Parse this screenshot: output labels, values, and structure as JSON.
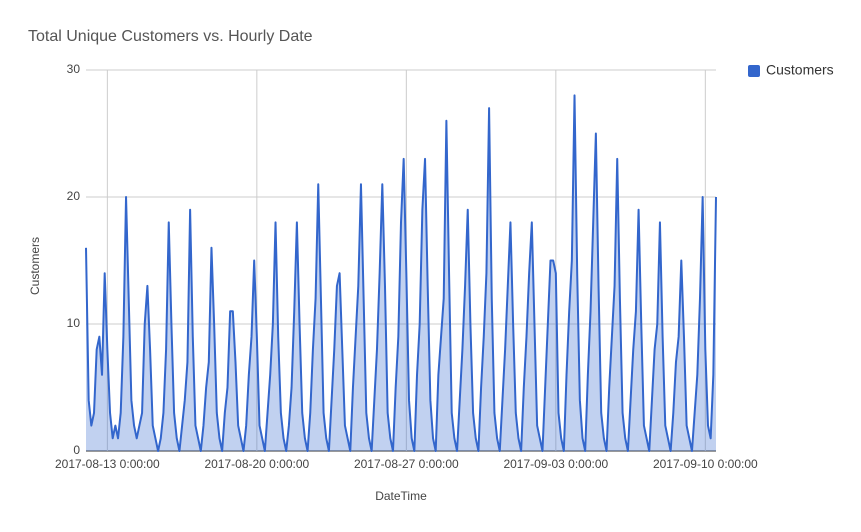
{
  "chart_data": {
    "type": "area",
    "title": "Total Unique Customers vs. Hourly Date",
    "x_label": "DateTime",
    "y_label": "Customers",
    "x": [
      "2017-08-12 0:00:00",
      "2017-08-12 3:00:00",
      "2017-08-12 6:00:00",
      "2017-08-12 9:00:00",
      "2017-08-12 12:00:00",
      "2017-08-12 15:00:00",
      "2017-08-12 18:00:00",
      "2017-08-12 21:00:00",
      "2017-08-13 0:00:00",
      "2017-08-13 3:00:00",
      "2017-08-13 6:00:00",
      "2017-08-13 9:00:00",
      "2017-08-13 12:00:00",
      "2017-08-13 15:00:00",
      "2017-08-13 18:00:00",
      "2017-08-13 21:00:00",
      "2017-08-14 0:00:00",
      "2017-08-14 3:00:00",
      "2017-08-14 6:00:00",
      "2017-08-14 9:00:00",
      "2017-08-14 12:00:00",
      "2017-08-14 15:00:00",
      "2017-08-14 18:00:00",
      "2017-08-14 21:00:00",
      "2017-08-15 0:00:00",
      "2017-08-15 3:00:00",
      "2017-08-15 6:00:00",
      "2017-08-15 9:00:00",
      "2017-08-15 12:00:00",
      "2017-08-15 15:00:00",
      "2017-08-15 18:00:00",
      "2017-08-15 21:00:00",
      "2017-08-16 0:00:00",
      "2017-08-16 3:00:00",
      "2017-08-16 6:00:00",
      "2017-08-16 9:00:00",
      "2017-08-16 12:00:00",
      "2017-08-16 15:00:00",
      "2017-08-16 18:00:00",
      "2017-08-16 21:00:00",
      "2017-08-17 0:00:00",
      "2017-08-17 3:00:00",
      "2017-08-17 6:00:00",
      "2017-08-17 9:00:00",
      "2017-08-17 12:00:00",
      "2017-08-17 15:00:00",
      "2017-08-17 18:00:00",
      "2017-08-17 21:00:00",
      "2017-08-18 0:00:00",
      "2017-08-18 3:00:00",
      "2017-08-18 6:00:00",
      "2017-08-18 9:00:00",
      "2017-08-18 12:00:00",
      "2017-08-18 15:00:00",
      "2017-08-18 18:00:00",
      "2017-08-18 21:00:00",
      "2017-08-19 0:00:00",
      "2017-08-19 3:00:00",
      "2017-08-19 6:00:00",
      "2017-08-19 9:00:00",
      "2017-08-19 12:00:00",
      "2017-08-19 15:00:00",
      "2017-08-19 18:00:00",
      "2017-08-19 21:00:00",
      "2017-08-20 0:00:00",
      "2017-08-20 3:00:00",
      "2017-08-20 6:00:00",
      "2017-08-20 9:00:00",
      "2017-08-20 12:00:00",
      "2017-08-20 15:00:00",
      "2017-08-20 18:00:00",
      "2017-08-20 21:00:00",
      "2017-08-21 0:00:00",
      "2017-08-21 3:00:00",
      "2017-08-21 6:00:00",
      "2017-08-21 9:00:00",
      "2017-08-21 12:00:00",
      "2017-08-21 15:00:00",
      "2017-08-21 18:00:00",
      "2017-08-21 21:00:00",
      "2017-08-22 0:00:00",
      "2017-08-22 3:00:00",
      "2017-08-22 6:00:00",
      "2017-08-22 9:00:00",
      "2017-08-22 12:00:00",
      "2017-08-22 15:00:00",
      "2017-08-22 18:00:00",
      "2017-08-22 21:00:00",
      "2017-08-23 0:00:00",
      "2017-08-23 3:00:00",
      "2017-08-23 6:00:00",
      "2017-08-23 9:00:00",
      "2017-08-23 12:00:00",
      "2017-08-23 15:00:00",
      "2017-08-23 18:00:00",
      "2017-08-23 21:00:00",
      "2017-08-24 0:00:00",
      "2017-08-24 3:00:00",
      "2017-08-24 6:00:00",
      "2017-08-24 9:00:00",
      "2017-08-24 12:00:00",
      "2017-08-24 15:00:00",
      "2017-08-24 18:00:00",
      "2017-08-24 21:00:00",
      "2017-08-25 0:00:00",
      "2017-08-25 3:00:00",
      "2017-08-25 6:00:00",
      "2017-08-25 9:00:00",
      "2017-08-25 12:00:00",
      "2017-08-25 15:00:00",
      "2017-08-25 18:00:00",
      "2017-08-25 21:00:00",
      "2017-08-26 0:00:00",
      "2017-08-26 3:00:00",
      "2017-08-26 6:00:00",
      "2017-08-26 9:00:00",
      "2017-08-26 12:00:00",
      "2017-08-26 15:00:00",
      "2017-08-26 18:00:00",
      "2017-08-26 21:00:00",
      "2017-08-27 0:00:00",
      "2017-08-27 3:00:00",
      "2017-08-27 6:00:00",
      "2017-08-27 9:00:00",
      "2017-08-27 12:00:00",
      "2017-08-27 15:00:00",
      "2017-08-27 18:00:00",
      "2017-08-27 21:00:00",
      "2017-08-28 0:00:00",
      "2017-08-28 3:00:00",
      "2017-08-28 6:00:00",
      "2017-08-28 9:00:00",
      "2017-08-28 12:00:00",
      "2017-08-28 15:00:00",
      "2017-08-28 18:00:00",
      "2017-08-28 21:00:00",
      "2017-08-29 0:00:00",
      "2017-08-29 3:00:00",
      "2017-08-29 6:00:00",
      "2017-08-29 9:00:00",
      "2017-08-29 12:00:00",
      "2017-08-29 15:00:00",
      "2017-08-29 18:00:00",
      "2017-08-29 21:00:00",
      "2017-08-30 0:00:00",
      "2017-08-30 3:00:00",
      "2017-08-30 6:00:00",
      "2017-08-30 9:00:00",
      "2017-08-30 12:00:00",
      "2017-08-30 15:00:00",
      "2017-08-30 18:00:00",
      "2017-08-30 21:00:00",
      "2017-08-31 0:00:00",
      "2017-08-31 3:00:00",
      "2017-08-31 6:00:00",
      "2017-08-31 9:00:00",
      "2017-08-31 12:00:00",
      "2017-08-31 15:00:00",
      "2017-08-31 18:00:00",
      "2017-08-31 21:00:00",
      "2017-09-01 0:00:00",
      "2017-09-01 3:00:00",
      "2017-09-01 6:00:00",
      "2017-09-01 9:00:00",
      "2017-09-01 12:00:00",
      "2017-09-01 15:00:00",
      "2017-09-01 18:00:00",
      "2017-09-01 21:00:00",
      "2017-09-02 0:00:00",
      "2017-09-02 3:00:00",
      "2017-09-02 6:00:00",
      "2017-09-02 9:00:00",
      "2017-09-02 12:00:00",
      "2017-09-02 15:00:00",
      "2017-09-02 18:00:00",
      "2017-09-02 21:00:00",
      "2017-09-03 0:00:00",
      "2017-09-03 3:00:00",
      "2017-09-03 6:00:00",
      "2017-09-03 9:00:00",
      "2017-09-03 12:00:00",
      "2017-09-03 15:00:00",
      "2017-09-03 18:00:00",
      "2017-09-03 21:00:00",
      "2017-09-04 0:00:00",
      "2017-09-04 3:00:00",
      "2017-09-04 6:00:00",
      "2017-09-04 9:00:00",
      "2017-09-04 12:00:00",
      "2017-09-04 15:00:00",
      "2017-09-04 18:00:00",
      "2017-09-04 21:00:00",
      "2017-09-05 0:00:00",
      "2017-09-05 3:00:00",
      "2017-09-05 6:00:00",
      "2017-09-05 9:00:00",
      "2017-09-05 12:00:00",
      "2017-09-05 15:00:00",
      "2017-09-05 18:00:00",
      "2017-09-05 21:00:00",
      "2017-09-06 0:00:00",
      "2017-09-06 3:00:00",
      "2017-09-06 6:00:00",
      "2017-09-06 9:00:00",
      "2017-09-06 12:00:00",
      "2017-09-06 15:00:00",
      "2017-09-06 18:00:00",
      "2017-09-06 21:00:00",
      "2017-09-07 0:00:00",
      "2017-09-07 3:00:00",
      "2017-09-07 6:00:00",
      "2017-09-07 9:00:00",
      "2017-09-07 12:00:00",
      "2017-09-07 15:00:00",
      "2017-09-07 18:00:00",
      "2017-09-07 21:00:00",
      "2017-09-08 0:00:00",
      "2017-09-08 3:00:00",
      "2017-09-08 6:00:00",
      "2017-09-08 9:00:00",
      "2017-09-08 12:00:00",
      "2017-09-08 15:00:00",
      "2017-09-08 18:00:00",
      "2017-09-08 21:00:00",
      "2017-09-09 0:00:00",
      "2017-09-09 3:00:00",
      "2017-09-09 6:00:00",
      "2017-09-09 9:00:00",
      "2017-09-09 12:00:00",
      "2017-09-09 15:00:00",
      "2017-09-09 18:00:00",
      "2017-09-09 21:00:00",
      "2017-09-10 0:00:00",
      "2017-09-10 3:00:00",
      "2017-09-10 6:00:00",
      "2017-09-10 9:00:00",
      "2017-09-10 12:00:00"
    ],
    "series": [
      {
        "name": "Customers",
        "color": "#3366cc",
        "values": [
          16,
          4,
          2,
          3,
          8,
          9,
          6,
          14,
          8,
          3,
          1,
          2,
          1,
          3,
          9,
          20,
          12,
          4,
          2,
          1,
          2,
          3,
          10,
          13,
          8,
          2,
          1,
          0,
          1,
          3,
          8,
          18,
          10,
          3,
          1,
          0,
          2,
          4,
          7,
          19,
          9,
          2,
          1,
          0,
          2,
          5,
          7,
          16,
          10,
          3,
          1,
          0,
          3,
          5,
          11,
          11,
          7,
          2,
          1,
          0,
          2,
          6,
          9,
          15,
          9,
          2,
          1,
          0,
          3,
          6,
          10,
          18,
          9,
          3,
          1,
          0,
          2,
          5,
          11,
          18,
          10,
          3,
          1,
          0,
          3,
          8,
          12,
          21,
          12,
          3,
          1,
          0,
          4,
          8,
          13,
          14,
          8,
          2,
          1,
          0,
          5,
          9,
          13,
          21,
          12,
          3,
          1,
          0,
          4,
          8,
          14,
          21,
          13,
          3,
          1,
          0,
          5,
          9,
          18,
          23,
          14,
          4,
          1,
          0,
          6,
          10,
          19,
          23,
          13,
          4,
          1,
          0,
          6,
          9,
          12,
          26,
          14,
          3,
          1,
          0,
          4,
          8,
          13,
          19,
          10,
          3,
          1,
          0,
          5,
          9,
          14,
          27,
          12,
          3,
          1,
          0,
          4,
          8,
          13,
          18,
          10,
          3,
          1,
          0,
          5,
          9,
          14,
          18,
          10,
          2,
          1,
          0,
          5,
          10,
          15,
          15,
          14,
          3,
          1,
          0,
          6,
          11,
          15,
          28,
          14,
          4,
          1,
          0,
          6,
          11,
          18,
          25,
          13,
          3,
          1,
          0,
          5,
          9,
          13,
          23,
          12,
          3,
          1,
          0,
          4,
          8,
          11,
          19,
          10,
          2,
          1,
          0,
          4,
          8,
          10,
          18,
          9,
          2,
          1,
          0,
          3,
          7,
          9,
          15,
          9,
          2,
          1,
          0,
          3,
          6,
          12,
          20,
          8,
          2,
          1,
          6,
          20
        ]
      }
    ],
    "xlim": [
      "2017-08-12 0:00:00",
      "2017-09-10 12:00:00"
    ],
    "xticks": [
      "2017-08-13 0:00:00",
      "2017-08-20 0:00:00",
      "2017-08-27 0:00:00",
      "2017-09-03 0:00:00",
      "2017-09-10 0:00:00"
    ],
    "ylim": [
      0,
      30
    ],
    "yticks": [
      0,
      10,
      20,
      30
    ],
    "grid": true,
    "legend": "right"
  }
}
